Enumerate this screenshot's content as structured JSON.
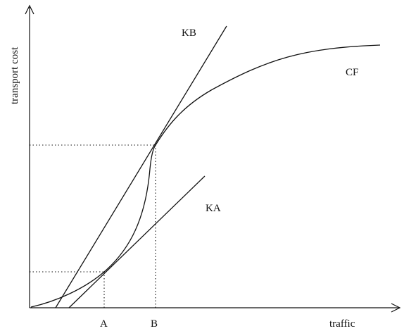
{
  "axes": {
    "x_label": "traffic",
    "y_label": "transport cost"
  },
  "curves": {
    "cost_function": "CF",
    "tangent_b": "KB",
    "tangent_a": "KA"
  },
  "points": {
    "a": "A",
    "b": "B"
  }
}
